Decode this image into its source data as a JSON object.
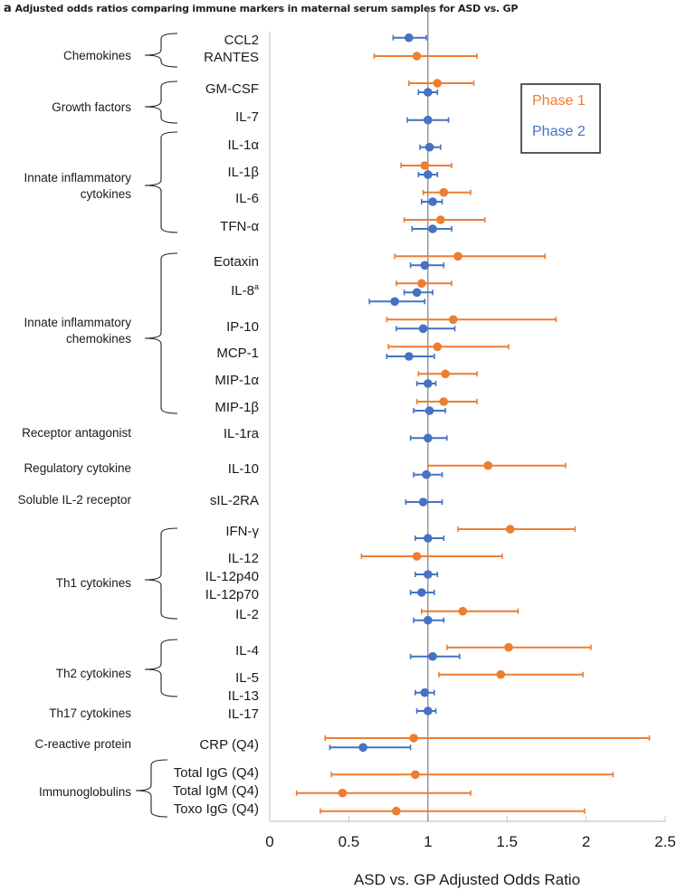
{
  "chart_data": {
    "type": "forest",
    "panel_label": "a",
    "title": "Adjusted odds ratios comparing immune markers in maternal serum samples for ASD vs. GP",
    "xlabel": "ASD vs. GP Adjusted Odds Ratio",
    "ylabel": "",
    "xlim": [
      0,
      2.5
    ],
    "xticks": [
      "0",
      "0.5",
      "1",
      "1.5",
      "2",
      "2.5"
    ],
    "xtick_values": [
      0,
      0.5,
      1,
      1.5,
      2,
      2.5
    ],
    "reference_line": 1,
    "grid": false,
    "legend": {
      "placement": "top-right",
      "entries": [
        {
          "name": "Phase 1",
          "color": "#ED7D31"
        },
        {
          "name": "Phase 2",
          "color": "#4472C4"
        }
      ]
    },
    "colors": {
      "phase1": "#ED7D31",
      "phase2": "#4472C4",
      "ref_line": "#7f7f7f",
      "axis": "#c8c8c8"
    },
    "markers": [
      {
        "label": "CCL2",
        "estimates": [
          {
            "phase": 2,
            "or": 0.88,
            "lo": 0.78,
            "hi": 0.99
          }
        ]
      },
      {
        "label": "RANTES",
        "estimates": [
          {
            "phase": 1,
            "or": 0.93,
            "lo": 0.66,
            "hi": 1.31
          }
        ]
      },
      {
        "label": "GM-CSF",
        "estimates": [
          {
            "phase": 1,
            "or": 1.06,
            "lo": 0.88,
            "hi": 1.29
          },
          {
            "phase": 2,
            "or": 1.0,
            "lo": 0.94,
            "hi": 1.06
          }
        ]
      },
      {
        "label": "IL-7",
        "estimates": [
          {
            "phase": 2,
            "or": 1.0,
            "lo": 0.87,
            "hi": 1.13
          }
        ]
      },
      {
        "label": "IL-1α",
        "estimates": [
          {
            "phase": 2,
            "or": 1.01,
            "lo": 0.95,
            "hi": 1.08
          }
        ]
      },
      {
        "label": "IL-1β",
        "estimates": [
          {
            "phase": 1,
            "or": 0.98,
            "lo": 0.83,
            "hi": 1.15
          },
          {
            "phase": 2,
            "or": 1.0,
            "lo": 0.94,
            "hi": 1.06
          }
        ]
      },
      {
        "label": "IL-6",
        "estimates": [
          {
            "phase": 1,
            "or": 1.1,
            "lo": 0.97,
            "hi": 1.27
          },
          {
            "phase": 2,
            "or": 1.03,
            "lo": 0.96,
            "hi": 1.09
          }
        ]
      },
      {
        "label": "TFN-α",
        "estimates": [
          {
            "phase": 1,
            "or": 1.08,
            "lo": 0.85,
            "hi": 1.36
          },
          {
            "phase": 2,
            "or": 1.03,
            "lo": 0.9,
            "hi": 1.15
          }
        ]
      },
      {
        "label": "Eotaxin",
        "estimates": [
          {
            "phase": 1,
            "or": 1.19,
            "lo": 0.79,
            "hi": 1.74
          },
          {
            "phase": 2,
            "or": 0.98,
            "lo": 0.89,
            "hi": 1.1
          }
        ]
      },
      {
        "label": "IL-8",
        "superscript": "a",
        "estimates": [
          {
            "phase": 1,
            "or": 0.96,
            "lo": 0.8,
            "hi": 1.15
          },
          {
            "phase": 2,
            "or": 0.93,
            "lo": 0.85,
            "hi": 1.03
          },
          {
            "phase": 2,
            "or": 0.79,
            "lo": 0.63,
            "hi": 0.98
          }
        ]
      },
      {
        "label": "IP-10",
        "estimates": [
          {
            "phase": 1,
            "or": 1.16,
            "lo": 0.74,
            "hi": 1.81
          },
          {
            "phase": 2,
            "or": 0.97,
            "lo": 0.8,
            "hi": 1.17
          }
        ]
      },
      {
        "label": "MCP-1",
        "estimates": [
          {
            "phase": 1,
            "or": 1.06,
            "lo": 0.75,
            "hi": 1.51
          },
          {
            "phase": 2,
            "or": 0.88,
            "lo": 0.74,
            "hi": 1.04
          }
        ]
      },
      {
        "label": "MIP-1α",
        "estimates": [
          {
            "phase": 1,
            "or": 1.11,
            "lo": 0.94,
            "hi": 1.31
          },
          {
            "phase": 2,
            "or": 1.0,
            "lo": 0.93,
            "hi": 1.05
          }
        ]
      },
      {
        "label": "MIP-1β",
        "estimates": [
          {
            "phase": 1,
            "or": 1.1,
            "lo": 0.93,
            "hi": 1.31
          },
          {
            "phase": 2,
            "or": 1.01,
            "lo": 0.91,
            "hi": 1.11
          }
        ]
      },
      {
        "label": "IL-1ra",
        "estimates": [
          {
            "phase": 2,
            "or": 1.0,
            "lo": 0.89,
            "hi": 1.12
          }
        ]
      },
      {
        "label": "IL-10",
        "estimates": [
          {
            "phase": 1,
            "or": 1.38,
            "lo": 1.0,
            "hi": 1.87
          },
          {
            "phase": 2,
            "or": 0.99,
            "lo": 0.91,
            "hi": 1.09
          }
        ]
      },
      {
        "label": "sIL-2RA",
        "estimates": [
          {
            "phase": 2,
            "or": 0.97,
            "lo": 0.86,
            "hi": 1.09
          }
        ]
      },
      {
        "label": "IFN-γ",
        "estimates": [
          {
            "phase": 1,
            "or": 1.52,
            "lo": 1.19,
            "hi": 1.93
          },
          {
            "phase": 2,
            "or": 1.0,
            "lo": 0.92,
            "hi": 1.1
          }
        ]
      },
      {
        "label": "IL-12",
        "estimates": [
          {
            "phase": 1,
            "or": 0.93,
            "lo": 0.58,
            "hi": 1.47
          }
        ]
      },
      {
        "label": "IL-12p40",
        "estimates": [
          {
            "phase": 2,
            "or": 1.0,
            "lo": 0.92,
            "hi": 1.06
          }
        ]
      },
      {
        "label": "IL-12p70",
        "estimates": [
          {
            "phase": 2,
            "or": 0.96,
            "lo": 0.89,
            "hi": 1.04
          }
        ]
      },
      {
        "label": "IL-2",
        "estimates": [
          {
            "phase": 1,
            "or": 1.22,
            "lo": 0.96,
            "hi": 1.57
          },
          {
            "phase": 2,
            "or": 1.0,
            "lo": 0.91,
            "hi": 1.1
          }
        ]
      },
      {
        "label": "IL-4",
        "estimates": [
          {
            "phase": 1,
            "or": 1.51,
            "lo": 1.12,
            "hi": 2.03
          },
          {
            "phase": 2,
            "or": 1.03,
            "lo": 0.89,
            "hi": 1.2
          }
        ]
      },
      {
        "label": "IL-5",
        "estimates": [
          {
            "phase": 1,
            "or": 1.46,
            "lo": 1.07,
            "hi": 1.98
          }
        ]
      },
      {
        "label": "IL-13",
        "estimates": [
          {
            "phase": 2,
            "or": 0.98,
            "lo": 0.92,
            "hi": 1.04
          }
        ]
      },
      {
        "label": "IL-17",
        "estimates": [
          {
            "phase": 2,
            "or": 1.0,
            "lo": 0.93,
            "hi": 1.05
          }
        ]
      },
      {
        "label": "CRP (Q4)",
        "estimates": [
          {
            "phase": 1,
            "or": 0.91,
            "lo": 0.35,
            "hi": 2.4
          },
          {
            "phase": 2,
            "or": 0.59,
            "lo": 0.38,
            "hi": 0.89
          }
        ]
      },
      {
        "label": "Total IgG (Q4)",
        "estimates": [
          {
            "phase": 1,
            "or": 0.92,
            "lo": 0.39,
            "hi": 2.17
          }
        ]
      },
      {
        "label": "Total IgM (Q4)",
        "estimates": [
          {
            "phase": 1,
            "or": 0.46,
            "lo": 0.17,
            "hi": 1.27
          }
        ]
      },
      {
        "label": "Toxo IgG (Q4)",
        "estimates": [
          {
            "phase": 1,
            "or": 0.8,
            "lo": 0.32,
            "hi": 1.99
          }
        ]
      }
    ],
    "groups": [
      {
        "label": [
          "Chemokines"
        ],
        "bracketed": true
      },
      {
        "label": [
          "Growth factors"
        ],
        "bracketed": true
      },
      {
        "label": [
          "Innate inflammatory",
          "cytokines"
        ],
        "bracketed": true
      },
      {
        "label": [
          "Innate inflammatory",
          "chemokines"
        ],
        "bracketed": true
      },
      {
        "label": [
          "Receptor antagonist"
        ],
        "bracketed": false
      },
      {
        "label": [
          "Regulatory cytokine"
        ],
        "bracketed": false
      },
      {
        "label": [
          "Soluble IL-2 receptor"
        ],
        "bracketed": false
      },
      {
        "label": [
          "Th1 cytokines"
        ],
        "bracketed": true
      },
      {
        "label": [
          "Th2 cytokines"
        ],
        "bracketed": true
      },
      {
        "label": [
          "Th17 cytokines"
        ],
        "bracketed": false
      },
      {
        "label": [
          "C-reactive protein"
        ],
        "bracketed": false
      },
      {
        "label": [
          "Immunoglobulins"
        ],
        "bracketed": true
      }
    ]
  }
}
